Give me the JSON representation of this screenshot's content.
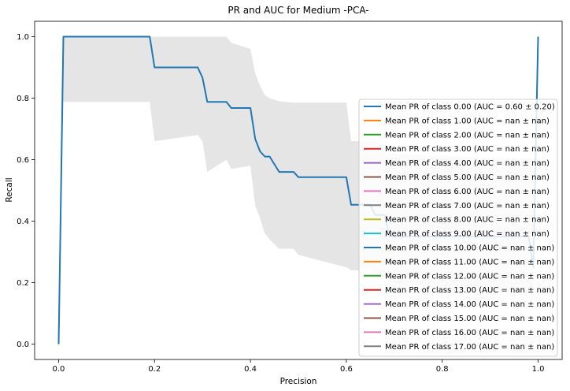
{
  "chart_data": {
    "type": "line",
    "title": "PR and AUC for Medium -PCA-",
    "xlabel": "Precision",
    "ylabel": "Recall",
    "xlim": [
      -0.05,
      1.05
    ],
    "ylim": [
      -0.05,
      1.05
    ],
    "xticks": [
      0.0,
      0.2,
      0.4,
      0.6,
      0.8,
      1.0
    ],
    "xtick_labels": [
      "0.0",
      "0.2",
      "0.4",
      "0.6",
      "0.8",
      "1.0"
    ],
    "yticks": [
      0.0,
      0.2,
      0.4,
      0.6,
      0.8,
      1.0
    ],
    "ytick_labels": [
      "0.0",
      "0.2",
      "0.4",
      "0.6",
      "0.8",
      "1.0"
    ],
    "grid": false,
    "legend_position": "right",
    "band_color": "#d3d3d3",
    "series": [
      {
        "name": "Mean PR of class 0.00 (AUC = 0.60 ± 0.20)",
        "color": "#1f77b4",
        "x": [
          0.0,
          0.01,
          0.19,
          0.2,
          0.29,
          0.3,
          0.31,
          0.35,
          0.36,
          0.4,
          0.41,
          0.42,
          0.43,
          0.44,
          0.46,
          0.49,
          0.5,
          0.6,
          0.61,
          0.65,
          0.66,
          0.68,
          0.69,
          0.98,
          0.99,
          1.0
        ],
        "y": [
          0.0,
          1.0,
          1.0,
          0.9,
          0.9,
          0.867,
          0.788,
          0.788,
          0.768,
          0.768,
          0.667,
          0.627,
          0.61,
          0.61,
          0.56,
          0.56,
          0.543,
          0.543,
          0.453,
          0.453,
          0.42,
          0.42,
          0.35,
          0.35,
          0.25,
          1.0
        ],
        "band_upper": [
          0.0,
          1.0,
          1.0,
          1.0,
          1.0,
          1.0,
          1.0,
          1.0,
          0.98,
          0.96,
          0.88,
          0.84,
          0.81,
          0.8,
          0.79,
          0.785,
          0.785,
          0.785,
          0.66,
          0.66,
          0.66,
          0.62,
          0.62,
          0.6,
          0.55,
          1.0
        ],
        "band_lower": [
          0.0,
          0.788,
          0.788,
          0.66,
          0.68,
          0.66,
          0.56,
          0.6,
          0.57,
          0.58,
          0.45,
          0.41,
          0.36,
          0.34,
          0.31,
          0.31,
          0.29,
          0.25,
          0.24,
          0.24,
          0.23,
          0.22,
          0.2,
          0.17,
          0.15,
          1.0
        ]
      },
      {
        "name": "Mean PR of class 1.00 (AUC = nan ± nan)",
        "color": "#ff7f0e",
        "x": [],
        "y": []
      },
      {
        "name": "Mean PR of class 2.00 (AUC = nan ± nan)",
        "color": "#2ca02c",
        "x": [],
        "y": []
      },
      {
        "name": "Mean PR of class 3.00 (AUC = nan ± nan)",
        "color": "#d62728",
        "x": [],
        "y": []
      },
      {
        "name": "Mean PR of class 4.00 (AUC = nan ± nan)",
        "color": "#9467bd",
        "x": [],
        "y": []
      },
      {
        "name": "Mean PR of class 5.00 (AUC = nan ± nan)",
        "color": "#8c564b",
        "x": [],
        "y": []
      },
      {
        "name": "Mean PR of class 6.00 (AUC = nan ± nan)",
        "color": "#e377c2",
        "x": [],
        "y": []
      },
      {
        "name": "Mean PR of class 7.00 (AUC = nan ± nan)",
        "color": "#7f7f7f",
        "x": [],
        "y": []
      },
      {
        "name": "Mean PR of class 8.00 (AUC = nan ± nan)",
        "color": "#bcbd22",
        "x": [],
        "y": []
      },
      {
        "name": "Mean PR of class 9.00 (AUC = nan ± nan)",
        "color": "#17becf",
        "x": [],
        "y": []
      },
      {
        "name": "Mean PR of class 10.00 (AUC = nan ± nan)",
        "color": "#1f77b4",
        "x": [],
        "y": []
      },
      {
        "name": "Mean PR of class 11.00 (AUC = nan ± nan)",
        "color": "#ff7f0e",
        "x": [],
        "y": []
      },
      {
        "name": "Mean PR of class 12.00 (AUC = nan ± nan)",
        "color": "#2ca02c",
        "x": [],
        "y": []
      },
      {
        "name": "Mean PR of class 13.00 (AUC = nan ± nan)",
        "color": "#d62728",
        "x": [],
        "y": []
      },
      {
        "name": "Mean PR of class 14.00 (AUC = nan ± nan)",
        "color": "#9467bd",
        "x": [],
        "y": []
      },
      {
        "name": "Mean PR of class 15.00 (AUC = nan ± nan)",
        "color": "#8c564b",
        "x": [],
        "y": []
      },
      {
        "name": "Mean PR of class 16.00 (AUC = nan ± nan)",
        "color": "#e377c2",
        "x": [],
        "y": []
      },
      {
        "name": "Mean PR of class 17.00 (AUC = nan ± nan)",
        "color": "#7f7f7f",
        "x": [],
        "y": []
      }
    ]
  }
}
